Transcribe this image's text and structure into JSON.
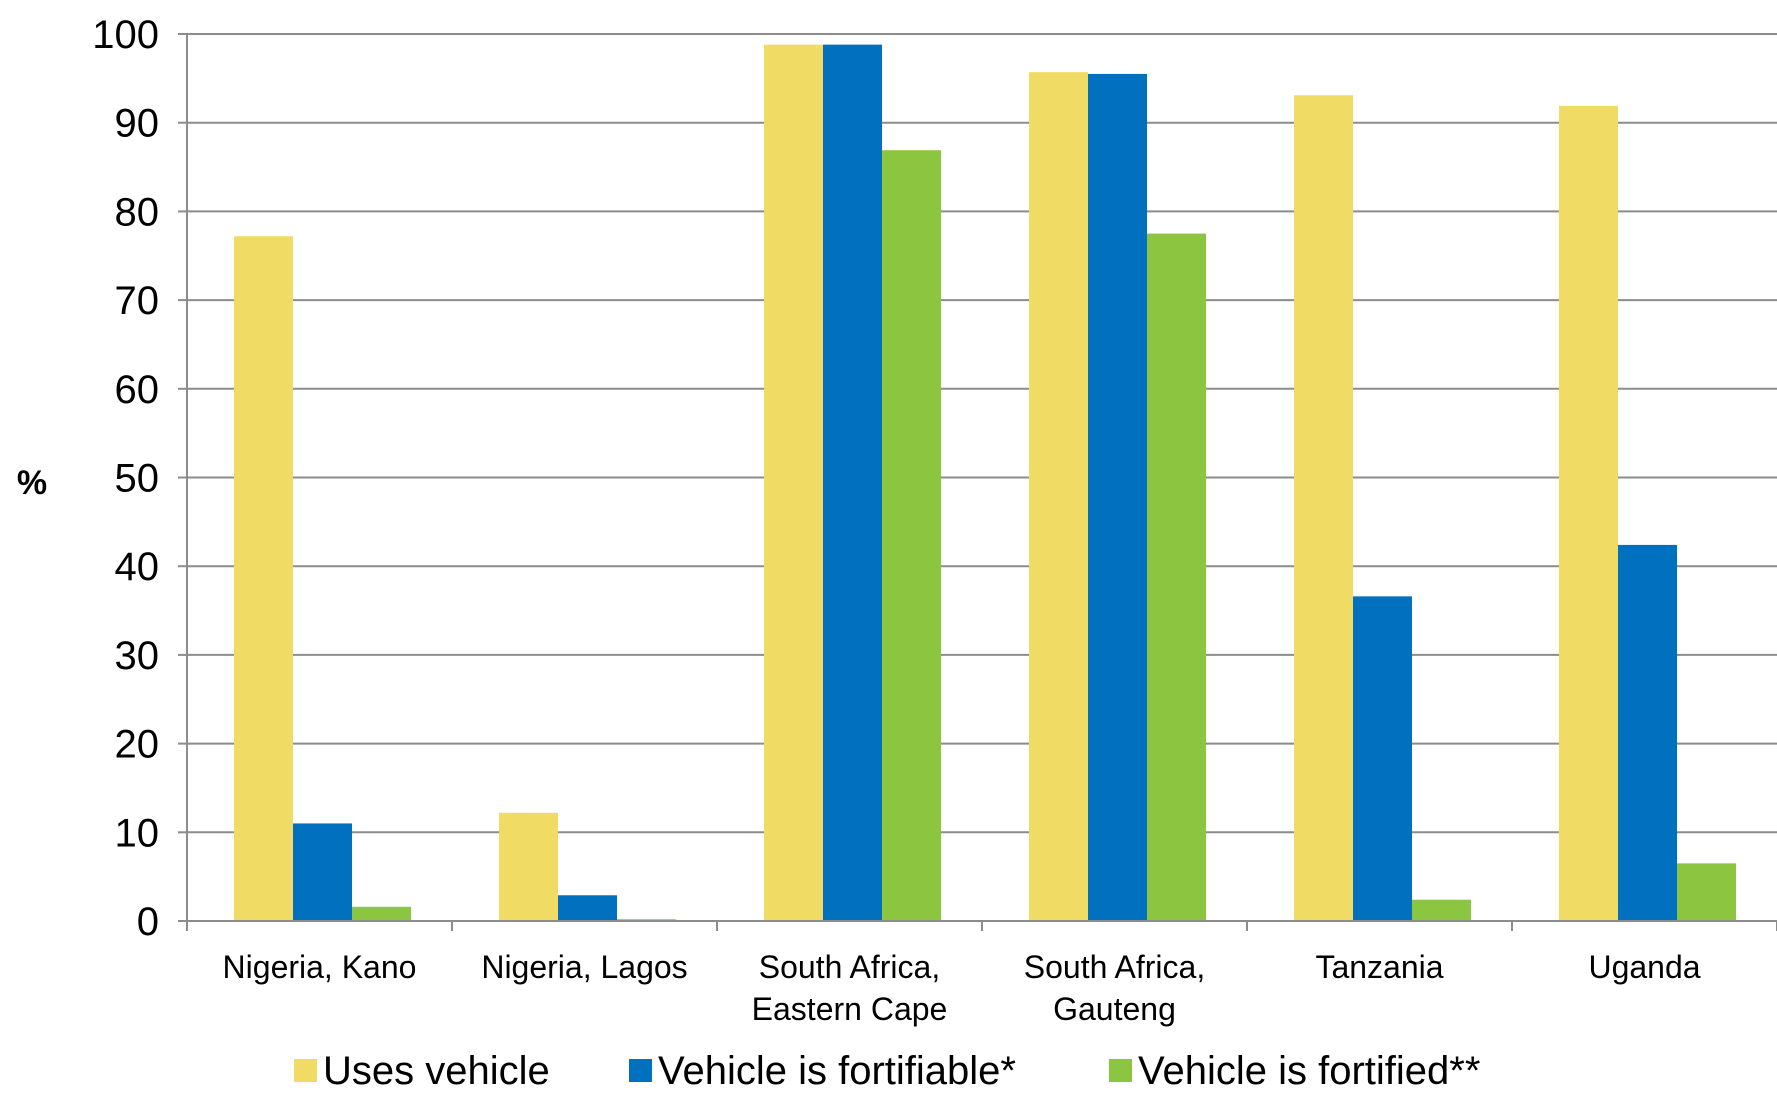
{
  "chart_data": {
    "type": "bar",
    "title": "",
    "xlabel": "",
    "ylabel": "%",
    "ylim": [
      0,
      100
    ],
    "yticks": [
      0,
      10,
      20,
      30,
      40,
      50,
      60,
      70,
      80,
      90,
      100
    ],
    "grid": true,
    "legend_position": "bottom",
    "categories": [
      [
        "Nigeria, Kano"
      ],
      [
        "Nigeria, Lagos"
      ],
      [
        "South Africa,",
        "Eastern Cape"
      ],
      [
        "South Africa,",
        "Gauteng"
      ],
      [
        "Tanzania"
      ],
      [
        "Uganda"
      ]
    ],
    "series": [
      {
        "name": "Uses vehicle",
        "color": "#F0DC64",
        "values": [
          77.2,
          12.2,
          98.8,
          95.7,
          93.1,
          91.9
        ]
      },
      {
        "name": "Vehicle is fortifiable*",
        "color": "#0070BF",
        "values": [
          11.0,
          2.9,
          98.8,
          95.5,
          36.6,
          42.4
        ]
      },
      {
        "name": "Vehicle is fortified**",
        "color": "#8CC641",
        "values": [
          1.6,
          0.2,
          86.9,
          77.5,
          2.4,
          6.5
        ]
      }
    ]
  }
}
